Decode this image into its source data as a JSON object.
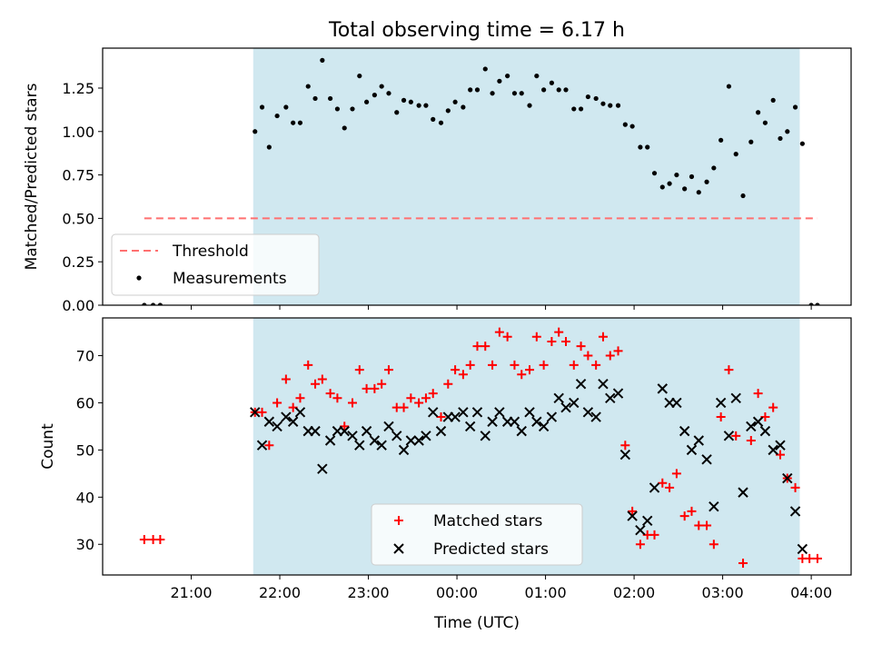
{
  "chart_data": {
    "title": "Total observing time = 6.17 h",
    "xlabel": "Time (UTC)",
    "x_tick_labels": [
      "21:00",
      "22:00",
      "23:00",
      "00:00",
      "01:00",
      "02:00",
      "03:00",
      "04:00"
    ],
    "xlim_hours": [
      20.0,
      28.45
    ],
    "observing_window_hours": [
      21.7,
      27.87
    ],
    "shaded_color": "#d0e8f0",
    "panels": [
      {
        "type": "scatter",
        "ylabel": "Matched/Predicted stars",
        "ylim": [
          0,
          1.48
        ],
        "y_tick_labels": [
          "0.00",
          "0.25",
          "0.50",
          "0.75",
          "1.00",
          "1.25"
        ],
        "legend_position": "lower-left",
        "threshold": {
          "name": "Threshold",
          "y": 0.5,
          "x_range": [
            20.47,
            28.07
          ],
          "color": "#ff7070",
          "style": "dashed"
        },
        "series": [
          {
            "name": "Measurements",
            "color": "#000000",
            "marker": "dot",
            "points": [
              [
                20.47,
                0.0
              ],
              [
                20.57,
                0.0
              ],
              [
                20.65,
                0.0
              ],
              [
                21.72,
                1.0
              ],
              [
                21.8,
                1.14
              ],
              [
                21.88,
                0.91
              ],
              [
                21.97,
                1.09
              ],
              [
                22.07,
                1.14
              ],
              [
                22.15,
                1.05
              ],
              [
                22.23,
                1.05
              ],
              [
                22.32,
                1.26
              ],
              [
                22.4,
                1.19
              ],
              [
                22.48,
                1.41
              ],
              [
                22.57,
                1.19
              ],
              [
                22.65,
                1.13
              ],
              [
                22.73,
                1.02
              ],
              [
                22.82,
                1.13
              ],
              [
                22.9,
                1.32
              ],
              [
                22.98,
                1.17
              ],
              [
                23.07,
                1.21
              ],
              [
                23.15,
                1.26
              ],
              [
                23.23,
                1.22
              ],
              [
                23.32,
                1.11
              ],
              [
                23.4,
                1.18
              ],
              [
                23.48,
                1.17
              ],
              [
                23.57,
                1.15
              ],
              [
                23.65,
                1.15
              ],
              [
                23.73,
                1.07
              ],
              [
                23.82,
                1.05
              ],
              [
                23.9,
                1.12
              ],
              [
                23.98,
                1.17
              ],
              [
                24.07,
                1.14
              ],
              [
                24.15,
                1.24
              ],
              [
                24.23,
                1.24
              ],
              [
                24.32,
                1.36
              ],
              [
                24.4,
                1.22
              ],
              [
                24.48,
                1.29
              ],
              [
                24.57,
                1.32
              ],
              [
                24.65,
                1.22
              ],
              [
                24.73,
                1.22
              ],
              [
                24.82,
                1.15
              ],
              [
                24.9,
                1.32
              ],
              [
                24.98,
                1.24
              ],
              [
                25.07,
                1.28
              ],
              [
                25.15,
                1.24
              ],
              [
                25.23,
                1.24
              ],
              [
                25.32,
                1.13
              ],
              [
                25.4,
                1.13
              ],
              [
                25.48,
                1.2
              ],
              [
                25.57,
                1.19
              ],
              [
                25.65,
                1.16
              ],
              [
                25.73,
                1.15
              ],
              [
                25.82,
                1.15
              ],
              [
                25.9,
                1.04
              ],
              [
                25.98,
                1.03
              ],
              [
                26.07,
                0.91
              ],
              [
                26.15,
                0.91
              ],
              [
                26.23,
                0.76
              ],
              [
                26.32,
                0.68
              ],
              [
                26.4,
                0.7
              ],
              [
                26.48,
                0.75
              ],
              [
                26.57,
                0.67
              ],
              [
                26.65,
                0.74
              ],
              [
                26.73,
                0.65
              ],
              [
                26.82,
                0.71
              ],
              [
                26.9,
                0.79
              ],
              [
                26.98,
                0.95
              ],
              [
                27.07,
                1.26
              ],
              [
                27.15,
                0.87
              ],
              [
                27.23,
                0.63
              ],
              [
                27.32,
                0.94
              ],
              [
                27.4,
                1.11
              ],
              [
                27.48,
                1.05
              ],
              [
                27.57,
                1.18
              ],
              [
                27.65,
                0.96
              ],
              [
                27.73,
                1.0
              ],
              [
                27.82,
                1.14
              ],
              [
                27.9,
                0.93
              ],
              [
                28.0,
                0.0
              ],
              [
                28.07,
                0.0
              ]
            ]
          }
        ]
      },
      {
        "type": "scatter",
        "ylabel": "Count",
        "ylim": [
          23.5,
          78
        ],
        "y_tick_labels": [
          "30",
          "40",
          "50",
          "60",
          "70"
        ],
        "legend_position": "lower-center",
        "series": [
          {
            "name": "Matched stars",
            "color": "#ff0000",
            "marker": "plus",
            "points": [
              [
                20.47,
                31
              ],
              [
                20.57,
                31
              ],
              [
                20.65,
                31
              ],
              [
                21.72,
                58
              ],
              [
                21.8,
                58
              ],
              [
                21.88,
                51
              ],
              [
                21.97,
                60
              ],
              [
                22.07,
                65
              ],
              [
                22.15,
                59
              ],
              [
                22.23,
                61
              ],
              [
                22.32,
                68
              ],
              [
                22.4,
                64
              ],
              [
                22.48,
                65
              ],
              [
                22.57,
                62
              ],
              [
                22.65,
                61
              ],
              [
                22.73,
                55
              ],
              [
                22.82,
                60
              ],
              [
                22.9,
                67
              ],
              [
                22.98,
                63
              ],
              [
                23.07,
                63
              ],
              [
                23.15,
                64
              ],
              [
                23.23,
                67
              ],
              [
                23.32,
                59
              ],
              [
                23.4,
                59
              ],
              [
                23.48,
                61
              ],
              [
                23.57,
                60
              ],
              [
                23.65,
                61
              ],
              [
                23.73,
                62
              ],
              [
                23.82,
                57
              ],
              [
                23.9,
                64
              ],
              [
                23.98,
                67
              ],
              [
                24.07,
                66
              ],
              [
                24.15,
                68
              ],
              [
                24.23,
                72
              ],
              [
                24.32,
                72
              ],
              [
                24.4,
                68
              ],
              [
                24.48,
                75
              ],
              [
                24.57,
                74
              ],
              [
                24.65,
                68
              ],
              [
                24.73,
                66
              ],
              [
                24.82,
                67
              ],
              [
                24.9,
                74
              ],
              [
                24.98,
                68
              ],
              [
                25.07,
                73
              ],
              [
                25.15,
                75
              ],
              [
                25.23,
                73
              ],
              [
                25.32,
                68
              ],
              [
                25.4,
                72
              ],
              [
                25.48,
                70
              ],
              [
                25.57,
                68
              ],
              [
                25.65,
                74
              ],
              [
                25.73,
                70
              ],
              [
                25.82,
                71
              ],
              [
                25.9,
                51
              ],
              [
                25.98,
                37
              ],
              [
                26.07,
                30
              ],
              [
                26.15,
                32
              ],
              [
                26.23,
                32
              ],
              [
                26.32,
                43
              ],
              [
                26.4,
                42
              ],
              [
                26.48,
                45
              ],
              [
                26.57,
                36
              ],
              [
                26.65,
                37
              ],
              [
                26.73,
                34
              ],
              [
                26.82,
                34
              ],
              [
                26.9,
                30
              ],
              [
                26.98,
                57
              ],
              [
                27.07,
                67
              ],
              [
                27.15,
                53
              ],
              [
                27.23,
                26
              ],
              [
                27.32,
                52
              ],
              [
                27.4,
                62
              ],
              [
                27.48,
                57
              ],
              [
                27.57,
                59
              ],
              [
                27.65,
                49
              ],
              [
                27.73,
                44
              ],
              [
                27.82,
                42
              ],
              [
                27.9,
                27
              ],
              [
                27.98,
                27
              ],
              [
                28.07,
                27
              ]
            ]
          },
          {
            "name": "Predicted stars",
            "color": "#000000",
            "marker": "cross",
            "points": [
              [
                21.72,
                58
              ],
              [
                21.8,
                51
              ],
              [
                21.88,
                56
              ],
              [
                21.97,
                55
              ],
              [
                22.07,
                57
              ],
              [
                22.15,
                56
              ],
              [
                22.23,
                58
              ],
              [
                22.32,
                54
              ],
              [
                22.4,
                54
              ],
              [
                22.48,
                46
              ],
              [
                22.57,
                52
              ],
              [
                22.65,
                54
              ],
              [
                22.73,
                54
              ],
              [
                22.82,
                53
              ],
              [
                22.9,
                51
              ],
              [
                22.98,
                54
              ],
              [
                23.07,
                52
              ],
              [
                23.15,
                51
              ],
              [
                23.23,
                55
              ],
              [
                23.32,
                53
              ],
              [
                23.4,
                50
              ],
              [
                23.48,
                52
              ],
              [
                23.57,
                52
              ],
              [
                23.65,
                53
              ],
              [
                23.73,
                58
              ],
              [
                23.82,
                54
              ],
              [
                23.9,
                57
              ],
              [
                23.98,
                57
              ],
              [
                24.07,
                58
              ],
              [
                24.15,
                55
              ],
              [
                24.23,
                58
              ],
              [
                24.32,
                53
              ],
              [
                24.4,
                56
              ],
              [
                24.48,
                58
              ],
              [
                24.57,
                56
              ],
              [
                24.65,
                56
              ],
              [
                24.73,
                54
              ],
              [
                24.82,
                58
              ],
              [
                24.9,
                56
              ],
              [
                24.98,
                55
              ],
              [
                25.07,
                57
              ],
              [
                25.15,
                61
              ],
              [
                25.23,
                59
              ],
              [
                25.32,
                60
              ],
              [
                25.4,
                64
              ],
              [
                25.48,
                58
              ],
              [
                25.57,
                57
              ],
              [
                25.65,
                64
              ],
              [
                25.73,
                61
              ],
              [
                25.82,
                62
              ],
              [
                25.9,
                49
              ],
              [
                25.98,
                36
              ],
              [
                26.07,
                33
              ],
              [
                26.15,
                35
              ],
              [
                26.23,
                42
              ],
              [
                26.32,
                63
              ],
              [
                26.4,
                60
              ],
              [
                26.48,
                60
              ],
              [
                26.57,
                54
              ],
              [
                26.65,
                50
              ],
              [
                26.73,
                52
              ],
              [
                26.82,
                48
              ],
              [
                26.9,
                38
              ],
              [
                26.98,
                60
              ],
              [
                27.07,
                53
              ],
              [
                27.15,
                61
              ],
              [
                27.23,
                41
              ],
              [
                27.32,
                55
              ],
              [
                27.4,
                56
              ],
              [
                27.48,
                54
              ],
              [
                27.57,
                50
              ],
              [
                27.65,
                51
              ],
              [
                27.73,
                44
              ],
              [
                27.82,
                37
              ],
              [
                27.9,
                29
              ]
            ]
          }
        ]
      }
    ]
  }
}
